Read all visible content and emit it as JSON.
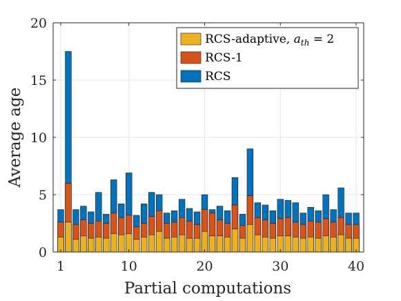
{
  "chart_data": {
    "type": "bar",
    "stacked": "overlay",
    "title": "",
    "xlabel": "Partial computations",
    "ylabel": "Average age",
    "xlim": [
      0,
      41
    ],
    "ylim": [
      0,
      20
    ],
    "xticks": [
      1,
      10,
      20,
      30,
      40
    ],
    "yticks": [
      0,
      5,
      10,
      15,
      20
    ],
    "grid": true,
    "legend_position": "top-right",
    "x": [
      1,
      2,
      3,
      4,
      5,
      6,
      7,
      8,
      9,
      10,
      11,
      12,
      13,
      14,
      15,
      16,
      17,
      18,
      19,
      20,
      21,
      22,
      23,
      24,
      25,
      26,
      27,
      28,
      29,
      30,
      31,
      32,
      33,
      34,
      35,
      36,
      37,
      38,
      39,
      40
    ],
    "series": [
      {
        "name": "RCS",
        "legend_label": "RCS",
        "color": "#0072BD",
        "values": [
          3.7,
          17.5,
          3.7,
          4.0,
          3.5,
          5.2,
          3.3,
          6.3,
          4.2,
          6.9,
          3.2,
          4.2,
          5.2,
          5.0,
          3.4,
          3.6,
          4.6,
          3.8,
          3.5,
          5.0,
          3.7,
          4.0,
          3.6,
          6.5,
          3.3,
          9.0,
          4.3,
          4.1,
          3.6,
          4.6,
          4.5,
          4.3,
          3.4,
          3.9,
          3.6,
          5.0,
          3.7,
          5.6,
          3.4,
          3.4
        ]
      },
      {
        "name": "RCS-1",
        "legend_label": "RCS-1",
        "color": "#D95319",
        "values": [
          2.6,
          6.0,
          2.4,
          2.8,
          2.5,
          2.7,
          2.5,
          3.4,
          3.0,
          3.2,
          2.2,
          2.5,
          3.1,
          3.6,
          2.5,
          2.6,
          3.0,
          2.7,
          2.4,
          3.7,
          3.4,
          2.8,
          2.5,
          4.1,
          2.3,
          4.9,
          3.0,
          2.8,
          2.5,
          2.9,
          3.0,
          2.6,
          2.4,
          2.7,
          2.6,
          2.9,
          2.6,
          3.0,
          2.4,
          2.4
        ]
      },
      {
        "name": "RCS-adaptive",
        "legend_label": "RCS-adaptive, ",
        "legend_math": {
          "base": "a",
          "sub": "th",
          "rel": " = ",
          "value": "2"
        },
        "color": "#EDB120",
        "values": [
          1.3,
          2.6,
          1.1,
          1.4,
          1.2,
          1.3,
          1.2,
          1.6,
          1.5,
          1.6,
          1.1,
          1.3,
          1.5,
          1.8,
          1.2,
          1.3,
          1.5,
          1.2,
          1.2,
          1.8,
          1.4,
          1.4,
          1.3,
          2.0,
          1.2,
          2.4,
          1.5,
          1.3,
          1.2,
          1.4,
          1.4,
          1.3,
          1.2,
          1.3,
          1.2,
          1.4,
          1.3,
          1.5,
          1.2,
          1.2
        ]
      }
    ]
  }
}
